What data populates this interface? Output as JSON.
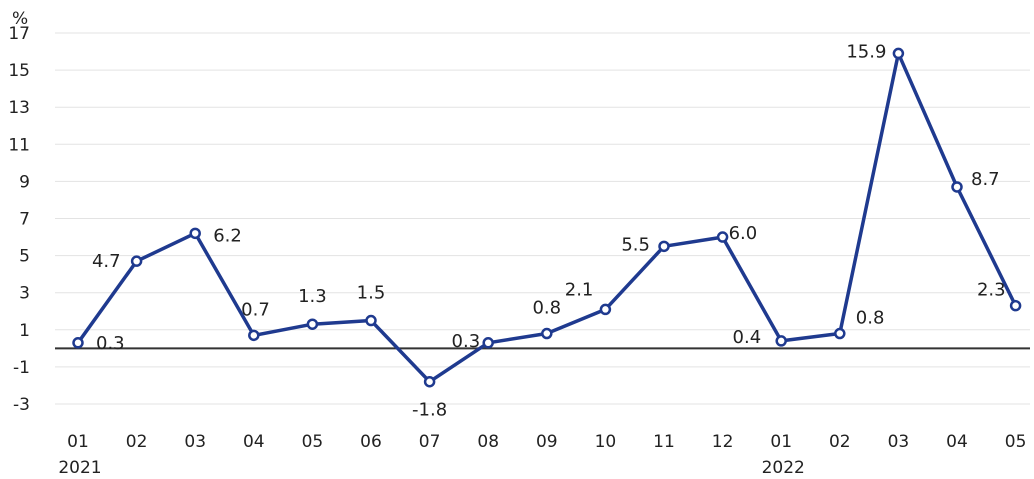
{
  "chart_data": {
    "type": "line",
    "title": "",
    "ylabel": "%",
    "xlabel": "",
    "x": [
      "01",
      "02",
      "03",
      "04",
      "05",
      "06",
      "07",
      "08",
      "09",
      "10",
      "11",
      "12",
      "01",
      "02",
      "03",
      "04",
      "05"
    ],
    "year_labels": [
      {
        "index": 0,
        "label": "2021"
      },
      {
        "index": 12,
        "label": "2022"
      }
    ],
    "series": [
      {
        "values": [
          0.3,
          4.7,
          6.2,
          0.7,
          1.3,
          1.5,
          -1.8,
          0.3,
          0.8,
          2.1,
          5.5,
          6.0,
          0.4,
          0.8,
          15.9,
          8.7,
          2.3
        ],
        "labels": [
          "0.3",
          "4.7",
          "6.2",
          "0.7",
          "1.3",
          "1.5",
          "-1.8",
          "0.3",
          "0.8",
          "2.1",
          "5.5",
          "6.0",
          "0.4",
          "0.8",
          "15.9",
          "8.7",
          "2.3"
        ],
        "color": "#1f3a8f"
      }
    ],
    "yticks": [
      17,
      15,
      13,
      11,
      9,
      7,
      5,
      3,
      1,
      -1,
      -3
    ],
    "ylim": [
      -4,
      17
    ],
    "zero_line": true,
    "grid": "horizontal",
    "colors": {
      "line": "#1f3a8f",
      "grid": "#e3e3e3",
      "axis": "#333333"
    }
  }
}
